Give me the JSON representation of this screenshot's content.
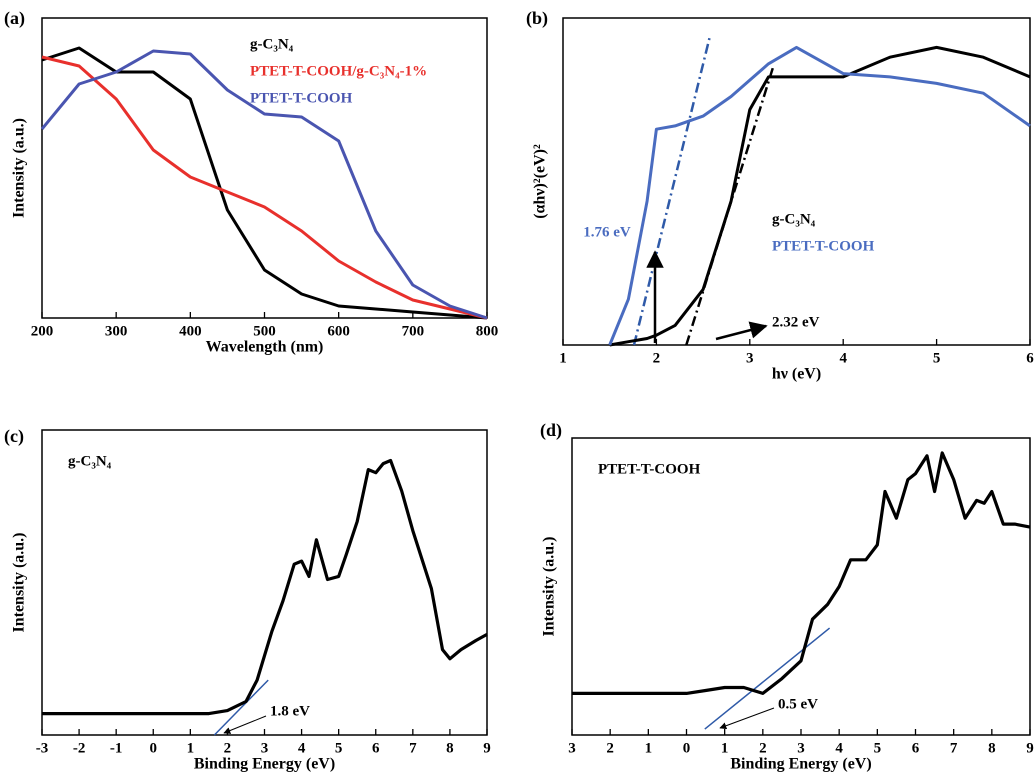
{
  "chart_data": [
    {
      "type": "line",
      "title": "(a)",
      "xlabel": "Wavelength (nm)",
      "ylabel": "Intensity (a.u.)",
      "x": [
        200,
        250,
        300,
        350,
        400,
        450,
        500,
        550,
        600,
        650,
        700,
        750,
        800
      ],
      "xlim": [
        200,
        800
      ],
      "xticks": [
        200,
        300,
        400,
        500,
        600,
        700,
        800
      ],
      "ylim": [
        0,
        100
      ],
      "yticks": [],
      "series": [
        {
          "name": "g-C₃N₄",
          "color": "#000000",
          "values": [
            86,
            90,
            82,
            82,
            73,
            36,
            16,
            8,
            4,
            3,
            2,
            1,
            0
          ]
        },
        {
          "name": "PTET-T-COOH/g-C₃N₄-1%",
          "color": "#e8302c",
          "values": [
            87,
            84,
            73,
            56,
            47,
            42,
            37,
            29,
            19,
            12,
            6,
            3,
            0
          ]
        },
        {
          "name": "PTET-T-COOH",
          "color": "#4a55b0",
          "values": [
            63,
            78,
            82,
            89,
            88,
            76,
            68,
            67,
            59,
            29,
            11,
            4,
            0
          ]
        }
      ]
    },
    {
      "type": "line",
      "title": "(b)",
      "xlabel": "hν (eV)",
      "ylabel": "(αhν)²(eV)²",
      "x": [
        1.5,
        1.7,
        1.9,
        2,
        2.2,
        2.5,
        2.8,
        3,
        3.2,
        3.5,
        4,
        4.5,
        5,
        5.5,
        6
      ],
      "xlim": [
        1,
        6
      ],
      "xticks": [
        1,
        2,
        3,
        4,
        5,
        6
      ],
      "ylim": [
        0,
        100
      ],
      "yticks": [],
      "series": [
        {
          "name": "g-C₃N₄",
          "color": "#000000",
          "values": [
            0,
            1,
            2,
            3,
            6,
            17,
            44,
            72,
            82,
            82,
            82,
            88,
            91,
            88,
            82
          ]
        },
        {
          "name": "PTET-T-COOH",
          "color": "#4a6cc0",
          "values": [
            0,
            14,
            44,
            66,
            67,
            70,
            76,
            81,
            86,
            91,
            83,
            82,
            80,
            77,
            67
          ]
        }
      ],
      "fit_lines": [
        {
          "color": "#2f5aa8",
          "x": [
            1.76,
            2.57
          ],
          "values": [
            0,
            94
          ]
        },
        {
          "color": "#000000",
          "x": [
            2.32,
            3.25
          ],
          "values": [
            0,
            85
          ]
        }
      ],
      "annotations": [
        "1.76 eV",
        "2.32 eV"
      ]
    },
    {
      "type": "line",
      "title": "(c)",
      "xlabel": "Binding Energy (eV)",
      "ylabel": "Intensity (a.u.)",
      "x": [
        -3,
        -2,
        -1,
        0,
        1,
        1.5,
        2,
        2.5,
        2.8,
        3,
        3.2,
        3.5,
        3.8,
        4,
        4.2,
        4.4,
        4.7,
        5,
        5.2,
        5.5,
        5.8,
        6,
        6.2,
        6.4,
        6.7,
        7,
        7.5,
        7.8,
        8,
        8.3,
        8.7,
        9
      ],
      "xlim": [
        -3,
        9
      ],
      "xticks": [
        -3,
        -2,
        -1,
        0,
        1,
        2,
        3,
        4,
        5,
        6,
        7,
        8,
        9
      ],
      "ylim": [
        0,
        100
      ],
      "yticks": [],
      "series": [
        {
          "name": "g-C₃N₄",
          "color": "#000000",
          "values": [
            7,
            7,
            7,
            7,
            7,
            7,
            8,
            11,
            18,
            26,
            34,
            44,
            56,
            57,
            52,
            64,
            51,
            52,
            59,
            70,
            87,
            86,
            89,
            90,
            80,
            67,
            48,
            28,
            25,
            28,
            31,
            33
          ]
        }
      ],
      "fit_lines": [
        {
          "color": "#2f5aa8",
          "x": [
            1.65,
            3.1
          ],
          "values": [
            0,
            18
          ]
        }
      ],
      "annotations": [
        "1.8 eV"
      ]
    },
    {
      "type": "line",
      "title": "(d)",
      "xlabel": "Binding Energy (eV)",
      "ylabel": "Intensity (a.u.)",
      "x": [
        -3,
        -2,
        -1,
        0,
        0.5,
        1,
        1.5,
        2,
        2.5,
        3,
        3.3,
        3.7,
        4,
        4.3,
        4.7,
        5,
        5.2,
        5.5,
        5.8,
        6,
        6.3,
        6.5,
        6.7,
        7,
        7.3,
        7.6,
        7.8,
        8,
        8.3,
        8.6,
        9
      ],
      "xlim": [
        -3,
        9
      ],
      "xticks": [
        {
          "value": -3,
          "label": "3"
        },
        {
          "value": -2,
          "label": "2"
        },
        {
          "value": -1,
          "label": "1"
        },
        0,
        1,
        2,
        3,
        4,
        5,
        6,
        7,
        8,
        9
      ],
      "ylim": [
        0,
        100
      ],
      "yticks": [],
      "series": [
        {
          "name": "PTET-T-COOH",
          "color": "#000000",
          "values": [
            14,
            14,
            14,
            14,
            15,
            16,
            16,
            14,
            19,
            25,
            39,
            44,
            50,
            59,
            59,
            64,
            82,
            73,
            86,
            88,
            94,
            82,
            95,
            86,
            73,
            79,
            78,
            82,
            71,
            71,
            70
          ]
        }
      ],
      "fit_lines": [
        {
          "color": "#2f5aa8",
          "x": [
            0.48,
            3.75
          ],
          "values": [
            2,
            36
          ]
        }
      ],
      "annotations": [
        "0.5 eV"
      ]
    }
  ]
}
